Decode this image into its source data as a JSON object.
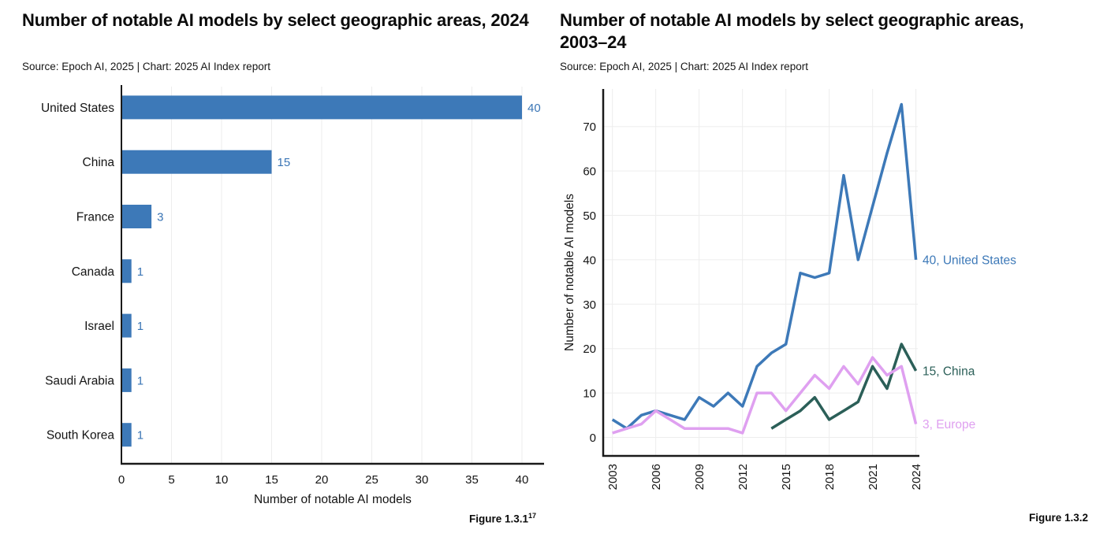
{
  "colors": {
    "accent_blue": "#3d79b8",
    "value_label_blue": "#3a75b5",
    "china_teal": "#2b5f58",
    "europe_pink": "#dfa0f0",
    "grid": "#ededed",
    "axis": "#1a1a1a",
    "text": "#111111"
  },
  "chart_data": [
    {
      "type": "bar",
      "orientation": "horizontal",
      "title": "Number of notable AI models by select geographic areas, 2024",
      "source": "Source: Epoch AI, 2025 | Chart: 2025 AI Index report",
      "caption": "Figure 1.3.1",
      "caption_superscript": "17",
      "categories": [
        "United States",
        "China",
        "France",
        "Canada",
        "Israel",
        "Saudi Arabia",
        "South Korea"
      ],
      "values": [
        40,
        15,
        3,
        1,
        1,
        1,
        1
      ],
      "xlabel": "Number of notable AI models",
      "xticks": [
        0,
        5,
        10,
        15,
        20,
        25,
        30,
        35,
        40
      ],
      "xlim": [
        0,
        42
      ],
      "grid": true,
      "bar_color": "#3d79b8",
      "value_label_color": "#3a75b5"
    },
    {
      "type": "line",
      "title": "Number of notable AI models by select geographic areas, 2003–24",
      "source": "Source: Epoch AI, 2025 | Chart: 2025 AI Index report",
      "caption": "Figure 1.3.2",
      "caption_superscript": "",
      "ylabel": "Number of notable AI models",
      "xticks": [
        2003,
        2006,
        2009,
        2012,
        2015,
        2018,
        2021,
        2024
      ],
      "yticks": [
        0,
        10,
        20,
        30,
        40,
        50,
        60,
        70
      ],
      "xlim": [
        2003,
        2024
      ],
      "ylim": [
        0,
        78
      ],
      "grid": true,
      "legend_position": "end-of-line-labels",
      "series": [
        {
          "name": "United States",
          "color": "#3d79b8",
          "end_label": "40, United States",
          "x_start": 2003,
          "values": [
            4,
            2,
            5,
            6,
            5,
            4,
            9,
            7,
            10,
            7,
            16,
            19,
            21,
            37,
            36,
            37,
            59,
            40,
            52,
            64,
            75,
            40
          ]
        },
        {
          "name": "China",
          "color": "#2b5f58",
          "end_label": "15, China",
          "x_start": 2014,
          "values": [
            2,
            4,
            6,
            9,
            4,
            6,
            8,
            16,
            11,
            21,
            15
          ]
        },
        {
          "name": "Europe",
          "color": "#dfa0f0",
          "end_label": "3, Europe",
          "x_start": 2003,
          "values": [
            1,
            2,
            3,
            6,
            4,
            2,
            2,
            2,
            2,
            1,
            10,
            10,
            6,
            10,
            14,
            11,
            16,
            12,
            18,
            14,
            16,
            3
          ]
        }
      ]
    }
  ]
}
